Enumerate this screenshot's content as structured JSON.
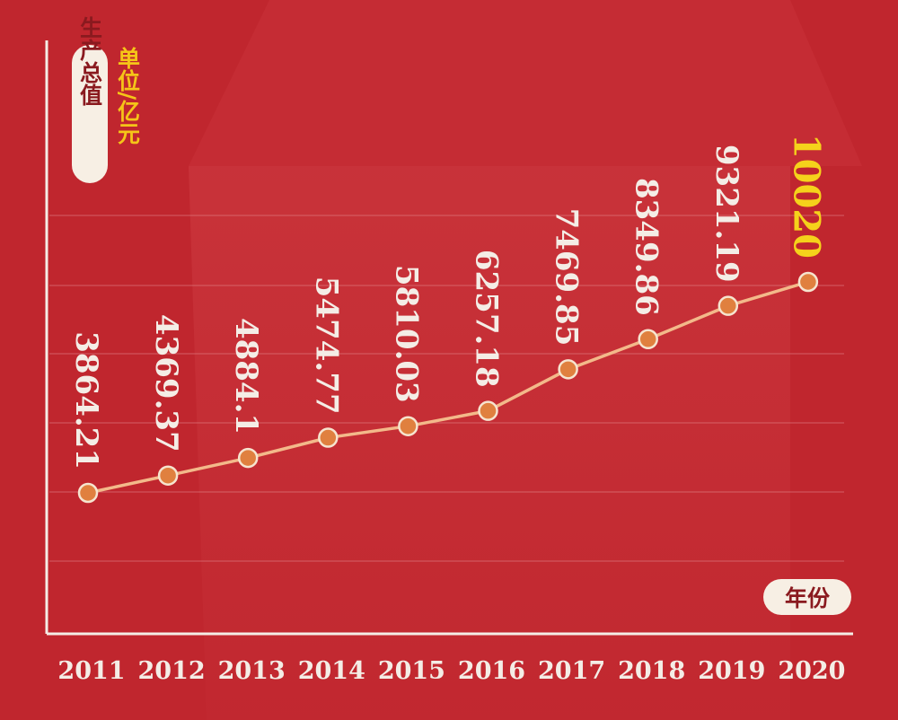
{
  "chart_data": {
    "type": "line",
    "y_axis_label": "生产总值",
    "unit_label": "单位/亿元",
    "x_axis_label": "年份",
    "categories": [
      "2011",
      "2012",
      "2013",
      "2014",
      "2015",
      "2016",
      "2017",
      "2018",
      "2019",
      "2020"
    ],
    "values": [
      3864.21,
      4369.37,
      4884.1,
      5474.77,
      5810.03,
      6257.18,
      7469.85,
      8349.86,
      9321.19,
      10020
    ],
    "value_labels": [
      "3864.21",
      "4369.37",
      "4884.1",
      "5474.77",
      "5810.03",
      "6257.18",
      "7469.85",
      "8349.86",
      "9321.19",
      "10020"
    ],
    "highlight_index": 9,
    "grid": true
  },
  "colors": {
    "background": "#c0262e",
    "line": "#f3b98a",
    "marker_fill": "#e0803f",
    "marker_stroke": "#f6e4cf",
    "label": "#f4ede6",
    "highlight_label": "#f5d21b",
    "unit_label": "#f5c518",
    "pill_bg": "#f7efe4",
    "pill_text": "#8a1a1f"
  }
}
